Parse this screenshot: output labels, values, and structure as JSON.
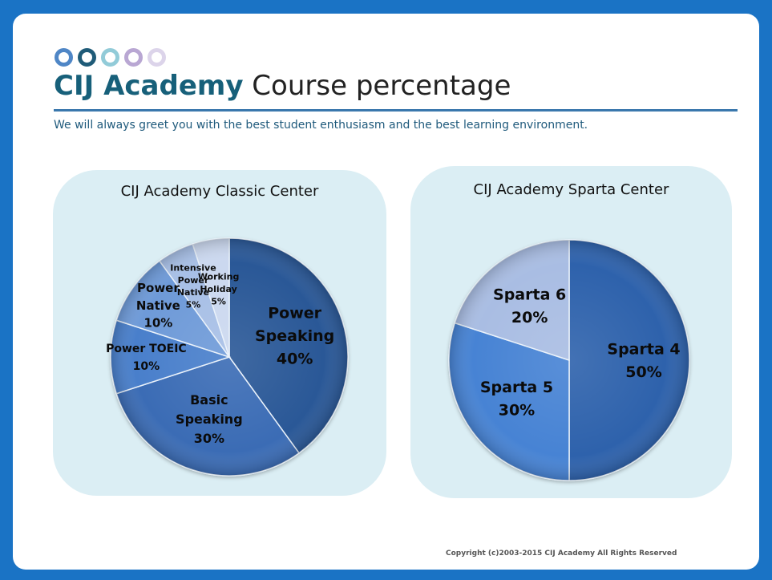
{
  "header": {
    "title_strong": "CIJ Academy",
    "title_rest": " Course percentage",
    "subtitle": "We will always greet you with the best student enthusiasm and the best learning environment.",
    "dot_colors": [
      "#4f86c6",
      "#1f5b78",
      "#92cbd8",
      "#b9a7d3",
      "#dcd4ea"
    ]
  },
  "footer": {
    "copyright": "Copyright (c)2003-2015 CIJ Academy All Rights Reserved"
  },
  "chart_data": [
    {
      "type": "pie",
      "title": "CIJ Academy Classic Center",
      "start": "12 o'clock, clockwise",
      "slices": [
        {
          "label": [
            "Power",
            "Speaking",
            "40%"
          ],
          "value": 40,
          "color": "#2c5897"
        },
        {
          "label": [
            "Basic",
            "Speaking",
            "30%"
          ],
          "value": 30,
          "color": "#3a6cb5"
        },
        {
          "label": [
            "Power  TOEIC",
            "10%"
          ],
          "value": 10,
          "color": "#4a7fcb"
        },
        {
          "label": [
            "Power",
            "Native",
            "10%"
          ],
          "value": 10,
          "color": "#6e9ad8"
        },
        {
          "label": [
            "Intensive",
            "Power",
            "Native",
            "5%"
          ],
          "value": 5,
          "color": "#a7bfe6"
        },
        {
          "label": [
            "Working",
            "Holiday",
            "5%"
          ],
          "value": 5,
          "color": "#cbd8ef"
        }
      ]
    },
    {
      "type": "pie",
      "title": "CIJ Academy Sparta Center",
      "start": "12 o'clock, clockwise",
      "slices": [
        {
          "label": [
            "Sparta 4",
            "50%"
          ],
          "value": 50,
          "color": "#2f62ac"
        },
        {
          "label": [
            "Sparta 5",
            "30%"
          ],
          "value": 30,
          "color": "#4783d4"
        },
        {
          "label": [
            "Sparta 6",
            "20%"
          ],
          "value": 20,
          "color": "#a9bde3"
        }
      ]
    }
  ]
}
